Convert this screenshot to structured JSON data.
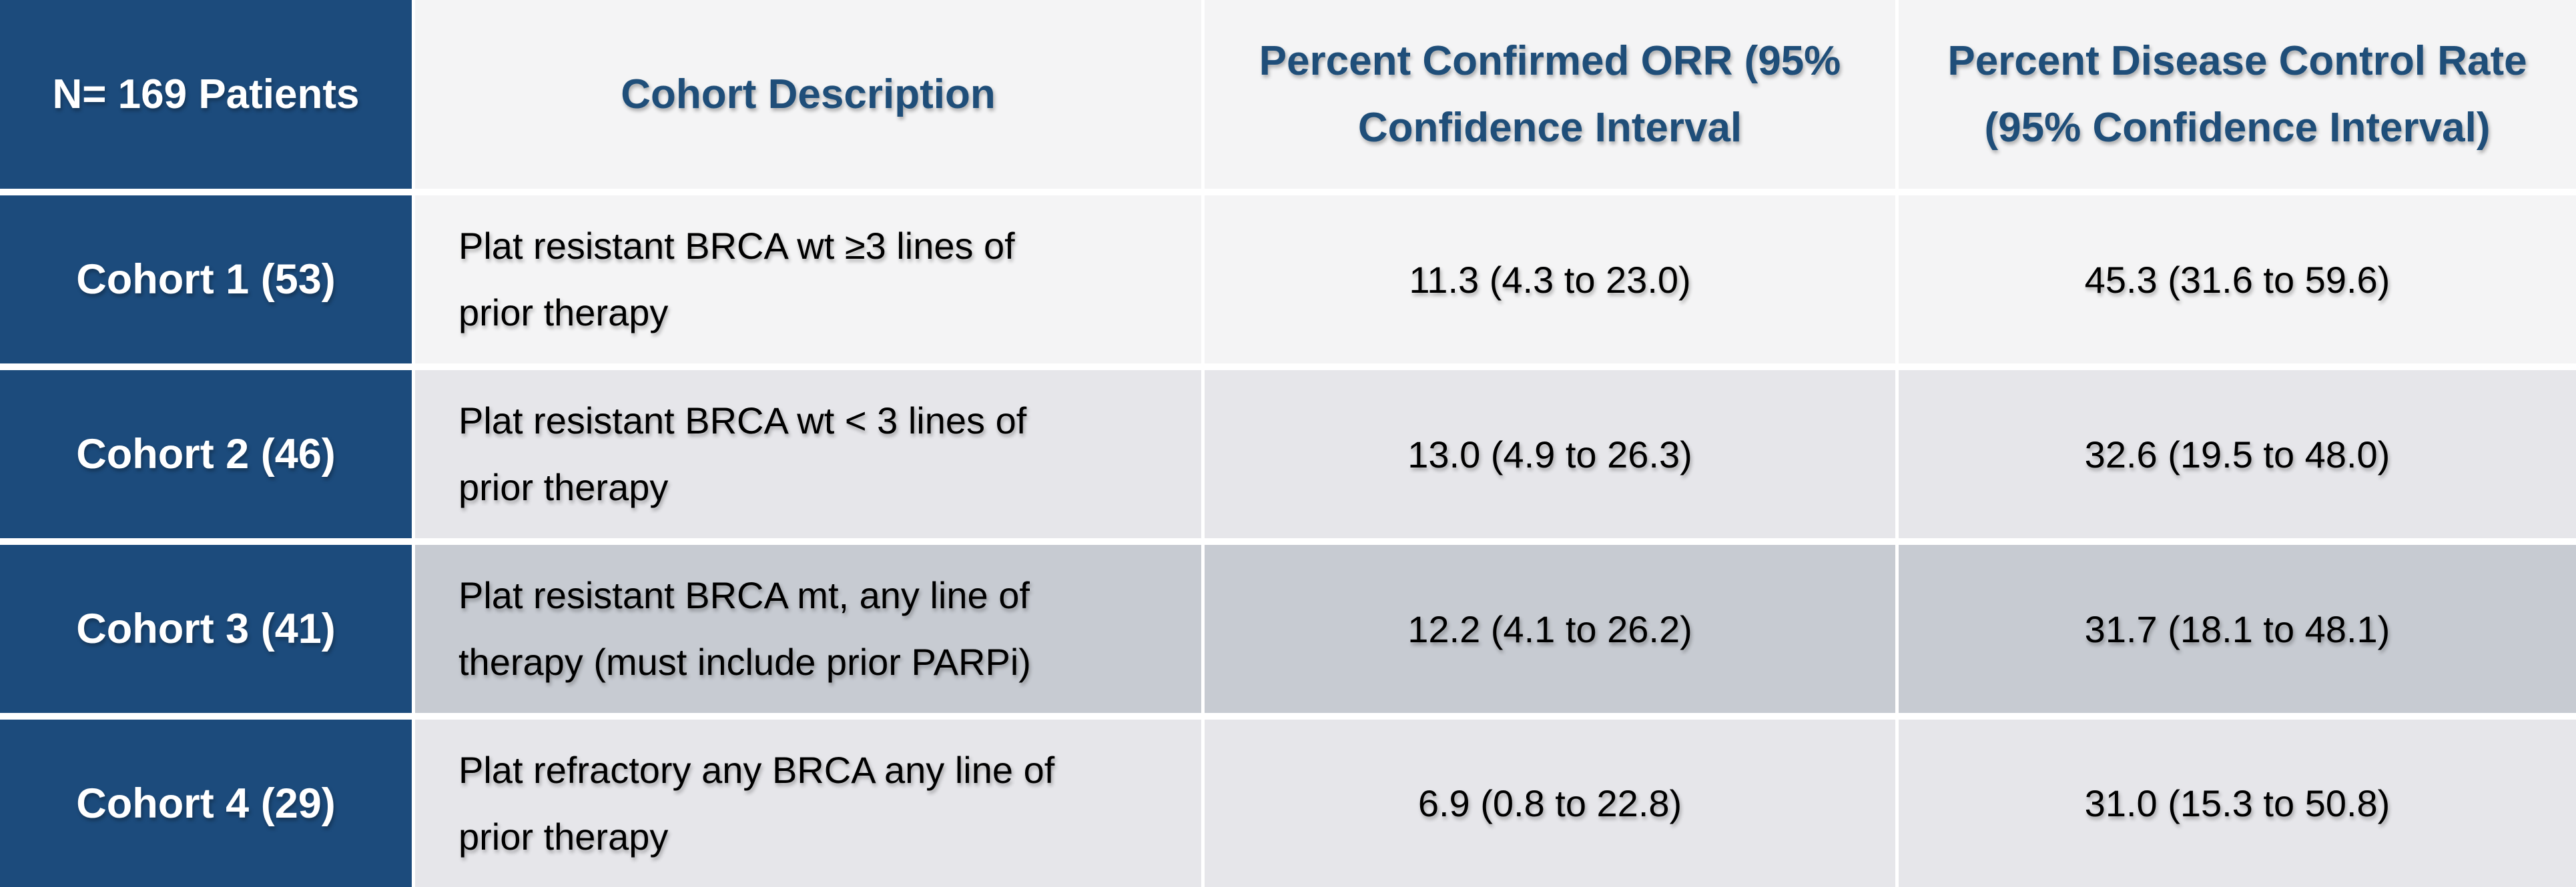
{
  "colors": {
    "header_blue": "#1C4B7C",
    "header_text_blue": "#1F4E79",
    "row_light": "#F4F4F5",
    "row_mid": "#E6E6EA",
    "row_dark": "#C7CBD2",
    "gap_white": "#FFFFFF",
    "body_text": "#000000",
    "cohort_text": "#FFFFFF"
  },
  "table": {
    "header": {
      "col1": "N= 169 Patients",
      "col2": "Cohort Description",
      "col3": "Percent Confirmed ORR (95%\nConfidence Interval",
      "col4": "Percent Disease Control Rate\n(95% Confidence Interval)"
    },
    "rows": [
      {
        "cohort": "Cohort 1 (53)",
        "description": "Plat resistant BRCA wt ≥3 lines of\nprior therapy",
        "orr": "11.3 (4.3 to 23.0)",
        "dcr": "45.3 (31.6 to 59.6)",
        "shade": "light"
      },
      {
        "cohort": "Cohort 2 (46)",
        "description": "Plat resistant BRCA wt < 3 lines of\nprior therapy",
        "orr": "13.0 (4.9 to 26.3)",
        "dcr": "32.6 (19.5 to 48.0)",
        "shade": "mid"
      },
      {
        "cohort": "Cohort 3 (41)",
        "description": "Plat resistant BRCA mt, any line of\ntherapy (must include prior PARPi)",
        "orr": "12.2 (4.1 to 26.2)",
        "dcr": "31.7 (18.1 to 48.1)",
        "shade": "dark"
      },
      {
        "cohort": "Cohort 4 (29)",
        "description": "Plat refractory any BRCA any line of\nprior therapy",
        "orr": "6.9 (0.8 to 22.8)",
        "dcr": "31.0 (15.3 to 50.8)",
        "shade": "mid"
      }
    ]
  },
  "chart_data": {
    "type": "table",
    "columns": [
      "N= 169 Patients",
      "Cohort Description",
      "Percent Confirmed ORR (95% Confidence Interval",
      "Percent Disease Control Rate (95% Confidence Interval)"
    ],
    "rows": [
      [
        "Cohort 1 (53)",
        "Plat resistant BRCA wt ≥3 lines of prior therapy",
        "11.3 (4.3 to 23.0)",
        "45.3 (31.6 to 59.6)"
      ],
      [
        "Cohort 2 (46)",
        "Plat resistant BRCA wt < 3 lines of prior therapy",
        "13.0 (4.9 to 26.3)",
        "32.6 (19.5 to 48.0)"
      ],
      [
        "Cohort 3 (41)",
        "Plat resistant BRCA mt, any line of therapy (must include prior PARPi)",
        "12.2 (4.1 to 26.2)",
        "31.7 (18.1 to 48.1)"
      ],
      [
        "Cohort 4 (29)",
        "Plat refractory any BRCA any line of prior therapy",
        "6.9 (0.8 to 22.8)",
        "31.0 (15.3 to 50.8)"
      ]
    ],
    "notes": "Clinical cohort outcomes table; N=169 patients split into 4 cohorts with confirmed ORR and disease control rate plus 95% confidence intervals."
  }
}
